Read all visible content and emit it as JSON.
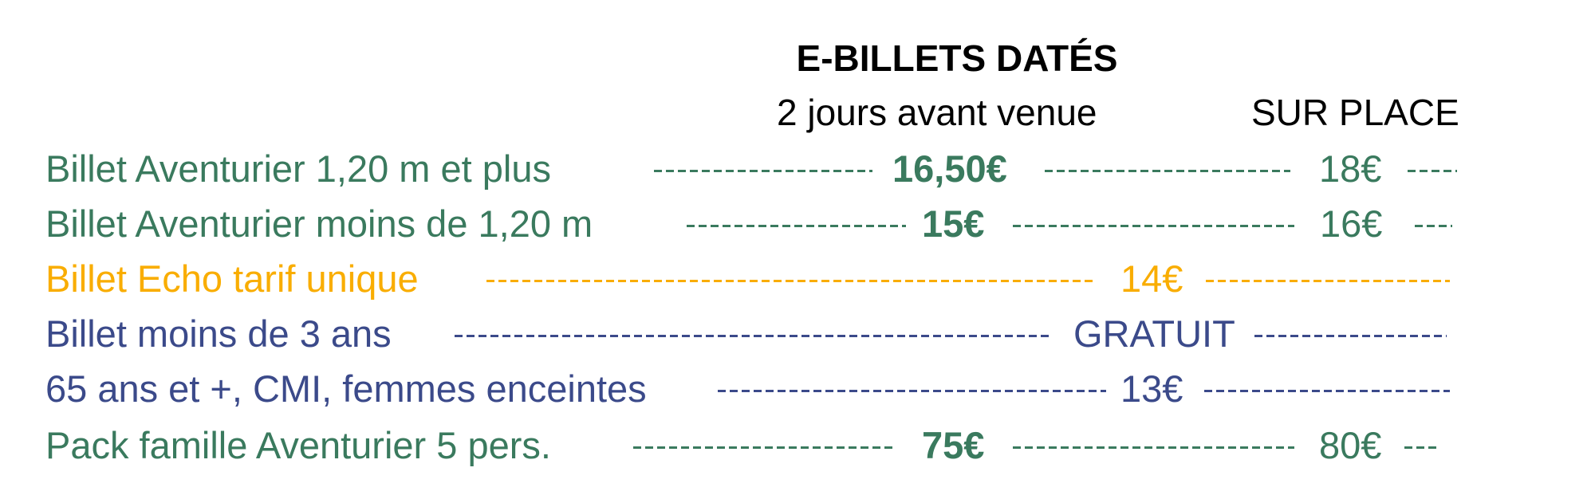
{
  "header": {
    "title": "E-BILLETS DATÉS",
    "col_online": "2 jours avant venue",
    "col_onsite": "SUR PLACE"
  },
  "colors": {
    "green": "#3a7a5e",
    "orange": "#f9ad00",
    "blue": "#3b4a8a"
  },
  "rows": [
    {
      "label": "Billet Aventurier 1,20 m et plus",
      "online": "16,50€",
      "onsite": "18€"
    },
    {
      "label": "Billet Aventurier moins de 1,20 m",
      "online": "15€",
      "onsite": "16€"
    },
    {
      "label": "Billet Echo tarif unique",
      "price": "14€"
    },
    {
      "label": "Billet moins de 3 ans",
      "price": "GRATUIT"
    },
    {
      "label": "65 ans et +, CMI, femmes enceintes",
      "price": "13€"
    },
    {
      "label": "Pack famille Aventurier 5 pers.",
      "online": "75€",
      "onsite": "80€"
    }
  ]
}
